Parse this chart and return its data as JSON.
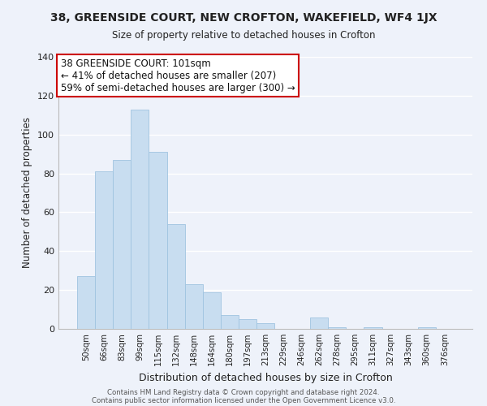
{
  "title": "38, GREENSIDE COURT, NEW CROFTON, WAKEFIELD, WF4 1JX",
  "subtitle": "Size of property relative to detached houses in Crofton",
  "xlabel": "Distribution of detached houses by size in Crofton",
  "ylabel": "Number of detached properties",
  "bar_color": "#c8ddf0",
  "bar_edge_color": "#a0c4e0",
  "categories": [
    "50sqm",
    "66sqm",
    "83sqm",
    "99sqm",
    "115sqm",
    "132sqm",
    "148sqm",
    "164sqm",
    "180sqm",
    "197sqm",
    "213sqm",
    "229sqm",
    "246sqm",
    "262sqm",
    "278sqm",
    "295sqm",
    "311sqm",
    "327sqm",
    "343sqm",
    "360sqm",
    "376sqm"
  ],
  "values": [
    27,
    81,
    87,
    113,
    91,
    54,
    23,
    19,
    7,
    5,
    3,
    0,
    0,
    6,
    1,
    0,
    1,
    0,
    0,
    1,
    0
  ],
  "ylim": [
    0,
    140
  ],
  "yticks": [
    0,
    20,
    40,
    60,
    80,
    100,
    120,
    140
  ],
  "annotation_title": "38 GREENSIDE COURT: 101sqm",
  "annotation_line1": "← 41% of detached houses are smaller (207)",
  "annotation_line2": "59% of semi-detached houses are larger (300) →",
  "annotation_box_color": "#ffffff",
  "annotation_box_edge": "#cc0000",
  "footer_line1": "Contains HM Land Registry data © Crown copyright and database right 2024.",
  "footer_line2": "Contains public sector information licensed under the Open Government Licence v3.0.",
  "bg_color": "#eef2fa",
  "grid_color": "#ffffff"
}
